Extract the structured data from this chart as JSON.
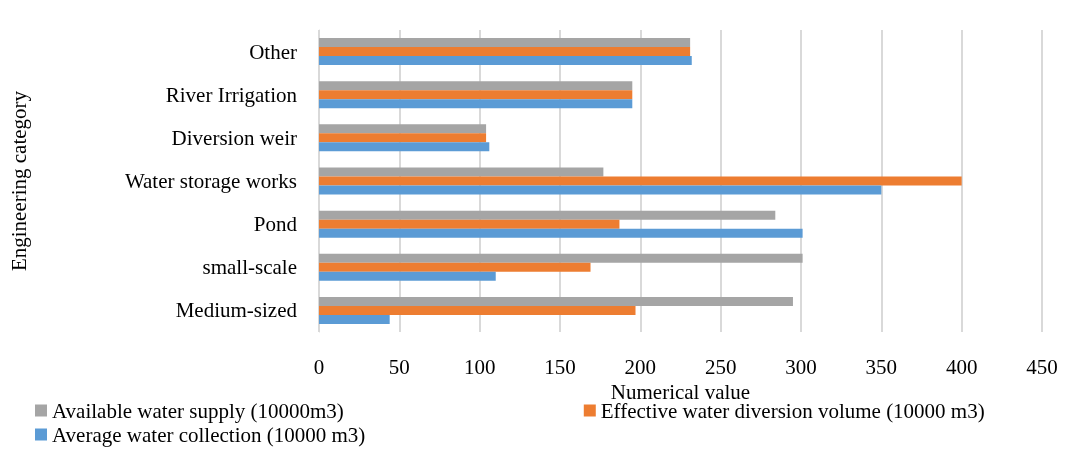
{
  "chart_data": {
    "type": "bar",
    "orientation": "horizontal",
    "xlabel": "Numerical value",
    "ylabel": "Engineering category",
    "categories": [
      "Other",
      "River Irrigation",
      "Diversion weir",
      "Water storage works",
      "Pond",
      "small-scale",
      "Medium-sized"
    ],
    "series": [
      {
        "name": "Available water supply (10000m3)",
        "color": "#a5a5a5",
        "values": [
          231,
          195,
          104,
          177,
          284,
          301,
          295
        ]
      },
      {
        "name": "Effective water diversion volume (10000 m3)",
        "color": "#ed7d31",
        "values": [
          231,
          195,
          104,
          400,
          187,
          169,
          197
        ]
      },
      {
        "name": "Average water collection (10000 m3)",
        "color": "#5b9bd5",
        "values": [
          232,
          195,
          106,
          350,
          301,
          110,
          44
        ]
      }
    ],
    "xlim": [
      0,
      450
    ],
    "xticks": [
      0,
      50,
      100,
      150,
      200,
      250,
      300,
      350,
      400,
      450
    ],
    "grid": "x",
    "legend": "bottom"
  }
}
